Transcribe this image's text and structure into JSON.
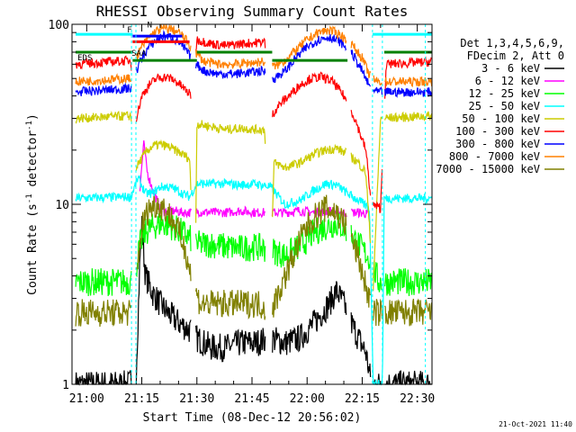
{
  "chart_data": {
    "type": "line",
    "title": "RHESSI Observing Summary Count Rates",
    "xlabel": "Start Time (08-Dec-12 20:56:02)",
    "ylabel_main": "Count Rate (s",
    "ylabel_sup": "-1",
    "ylabel_tail": " detector",
    "ylabel_close": ")",
    "yscale": "log",
    "ylim": [
      1,
      100
    ],
    "xlim_min": [
      56,
      154
    ],
    "x_ticks": [
      {
        "min": 60,
        "label": "21:00"
      },
      {
        "min": 75,
        "label": "21:15"
      },
      {
        "min": 90,
        "label": "21:30"
      },
      {
        "min": 105,
        "label": "21:45"
      },
      {
        "min": 120,
        "label": "22:00"
      },
      {
        "min": 135,
        "label": "22:15"
      },
      {
        "min": 150,
        "label": "22:30"
      }
    ],
    "y_ticks": [
      {
        "value": 1,
        "label": "1"
      },
      {
        "value": 10,
        "label": "10"
      },
      {
        "value": 100,
        "label": "100"
      }
    ],
    "legend_header": [
      "Det 1,3,4,5,6,9,",
      "FDecim 2, Att 0"
    ],
    "flag_labels": [
      {
        "text": "F",
        "min": 71.0,
        "value": 90
      },
      {
        "text": "N",
        "min": 76.5,
        "value": 96
      },
      {
        "text": "EDS",
        "min": 57.5,
        "value": 63
      },
      {
        "text": "SAA",
        "min": 72.2,
        "value": 67
      }
    ],
    "flag_lines": [
      {
        "color": "#00ffff",
        "value": 88,
        "segments": [
          [
            57.0,
            72.5
          ],
          [
            137.8,
            154.0
          ]
        ]
      },
      {
        "color": "#ff0000",
        "value": 80,
        "segments": [
          [
            72.5,
            88.0
          ]
        ]
      },
      {
        "color": "#0000ff",
        "value": 86,
        "segments": [
          [
            72.5,
            86.0
          ]
        ]
      },
      {
        "color": "#008000",
        "value": 70,
        "segments": [
          [
            57.0,
            72.5
          ],
          [
            90.0,
            110.5
          ],
          [
            141.0,
            154.0
          ]
        ]
      },
      {
        "color": "#008000",
        "value": 63,
        "segments": [
          [
            72.5,
            90.0
          ],
          [
            110.5,
            131.0
          ]
        ]
      }
    ],
    "gaps": [
      [
        72.2,
        73.4
      ],
      [
        88.5,
        89.6
      ],
      [
        108.7,
        110.5
      ],
      [
        130.8,
        132.0
      ],
      [
        137.3,
        138.0
      ],
      [
        140.5,
        141.1
      ]
    ],
    "series": [
      {
        "name": "3 - 6 keV",
        "color": "#000000",
        "points": [
          [
            57,
            1.0
          ],
          [
            71.5,
            1.0
          ],
          [
            73.5,
            1.2
          ],
          [
            74.5,
            5.0
          ],
          [
            75.0,
            7.5
          ],
          [
            76.0,
            4.0
          ],
          [
            78.0,
            3.2
          ],
          [
            80.0,
            2.8
          ],
          [
            82.0,
            2.5
          ],
          [
            85.0,
            2.2
          ],
          [
            88.0,
            2.0
          ],
          [
            90.0,
            1.8
          ],
          [
            94.0,
            1.6
          ],
          [
            98.0,
            1.6
          ],
          [
            102.0,
            1.7
          ],
          [
            106.0,
            1.7
          ],
          [
            110.0,
            1.8
          ],
          [
            114.0,
            1.7
          ],
          [
            118.0,
            1.8
          ],
          [
            122.0,
            2.2
          ],
          [
            126.0,
            2.8
          ],
          [
            128.0,
            3.3
          ],
          [
            130.0,
            2.8
          ],
          [
            132.0,
            2.2
          ],
          [
            134.0,
            1.8
          ],
          [
            136.0,
            1.5
          ],
          [
            137.5,
            1.0
          ],
          [
            154.0,
            1.0
          ]
        ]
      },
      {
        "name": "6 - 12 keV",
        "color": "#ff00ff",
        "points": [
          [
            74.5,
            12
          ],
          [
            75.5,
            22
          ],
          [
            76.5,
            15
          ],
          [
            78.0,
            12
          ],
          [
            80.0,
            9.5
          ],
          [
            82.0,
            9.0
          ],
          [
            84.0,
            9.2
          ],
          [
            86.0,
            9.0
          ],
          [
            88.0,
            9.0
          ],
          [
            90.0,
            9.1
          ],
          [
            94.0,
            9.0
          ],
          [
            98.0,
            9.0
          ],
          [
            102.0,
            9.2
          ],
          [
            106.0,
            9.0
          ],
          [
            110.0,
            9.0
          ],
          [
            114.0,
            9.0
          ],
          [
            118.0,
            9.2
          ],
          [
            122.0,
            9.0
          ],
          [
            126.0,
            9.2
          ],
          [
            130.0,
            9.0
          ],
          [
            134.0,
            9.0
          ],
          [
            137.0,
            8.8
          ]
        ]
      },
      {
        "name": "12 - 25 keV",
        "color": "#00ff00",
        "points": [
          [
            57,
            3.7
          ],
          [
            72.0,
            3.7
          ],
          [
            73.5,
            4.5
          ],
          [
            74.5,
            6.0
          ],
          [
            76.0,
            7.0
          ],
          [
            78.0,
            7.5
          ],
          [
            80.0,
            7.8
          ],
          [
            82.0,
            7.7
          ],
          [
            84.0,
            7.4
          ],
          [
            86.0,
            7.0
          ],
          [
            88.0,
            6.5
          ],
          [
            90.0,
            6.0
          ],
          [
            94.0,
            6.0
          ],
          [
            98.0,
            5.8
          ],
          [
            102.0,
            5.7
          ],
          [
            106.0,
            5.8
          ],
          [
            110.0,
            5.6
          ],
          [
            114.0,
            5.2
          ],
          [
            118.0,
            5.8
          ],
          [
            122.0,
            7.0
          ],
          [
            125.0,
            7.5
          ],
          [
            128.0,
            7.8
          ],
          [
            131.0,
            7.2
          ],
          [
            134.0,
            6.0
          ],
          [
            137.0,
            5.0
          ],
          [
            139.5,
            3.7
          ],
          [
            141.5,
            3.7
          ],
          [
            154.0,
            3.7
          ]
        ]
      },
      {
        "name": "25 - 50 keV",
        "color": "#00ffff",
        "points": [
          [
            57,
            10.8
          ],
          [
            72.0,
            11.0
          ],
          [
            74.0,
            14.0
          ],
          [
            76.0,
            11.5
          ],
          [
            78.0,
            11.5
          ],
          [
            80.0,
            12.5
          ],
          [
            82.0,
            12.5
          ],
          [
            84.0,
            12.2
          ],
          [
            86.0,
            11.5
          ],
          [
            88.0,
            11.0
          ],
          [
            90.0,
            13.0
          ],
          [
            94.0,
            13.0
          ],
          [
            98.0,
            13.0
          ],
          [
            102.0,
            12.8
          ],
          [
            106.0,
            13.0
          ],
          [
            110.0,
            12.5
          ],
          [
            114.0,
            10.0
          ],
          [
            118.0,
            10.5
          ],
          [
            122.0,
            12.0
          ],
          [
            125.0,
            13.0
          ],
          [
            128.0,
            12.8
          ],
          [
            131.0,
            11.5
          ],
          [
            134.0,
            10.5
          ],
          [
            137.0,
            9.5
          ],
          [
            138.0,
            1.0
          ],
          [
            140.5,
            1.0
          ],
          [
            141.0,
            10.8
          ],
          [
            154.0,
            10.8
          ]
        ]
      },
      {
        "name": "50 - 100 keV",
        "color": "#cccc00",
        "points": [
          [
            57,
            30
          ],
          [
            72.0,
            31
          ],
          [
            73.5,
            16
          ],
          [
            75.0,
            18
          ],
          [
            76.5,
            20
          ],
          [
            78.0,
            21
          ],
          [
            80.0,
            21.5
          ],
          [
            82.0,
            21
          ],
          [
            84.0,
            20
          ],
          [
            86.0,
            19
          ],
          [
            88.0,
            18
          ],
          [
            89.5,
            3.5
          ],
          [
            90.0,
            28
          ],
          [
            94.0,
            27
          ],
          [
            98.0,
            26
          ],
          [
            102.0,
            26.5
          ],
          [
            106.0,
            26
          ],
          [
            108.5,
            26
          ],
          [
            110.0,
            3.5
          ],
          [
            111.0,
            17
          ],
          [
            114.0,
            16
          ],
          [
            118.0,
            17
          ],
          [
            122.0,
            19
          ],
          [
            125.0,
            20
          ],
          [
            128.0,
            20.5
          ],
          [
            131.0,
            19
          ],
          [
            134.0,
            17
          ],
          [
            136.0,
            15
          ],
          [
            138.0,
            3.5
          ],
          [
            140.0,
            30
          ],
          [
            154.0,
            31
          ]
        ]
      },
      {
        "name": "100 - 300 keV",
        "color": "#ff0000",
        "points": [
          [
            57,
            60
          ],
          [
            72.0,
            63
          ],
          [
            73.5,
            30
          ],
          [
            75.0,
            40
          ],
          [
            77.0,
            46
          ],
          [
            79.0,
            50
          ],
          [
            81.0,
            51
          ],
          [
            83.0,
            50
          ],
          [
            85.0,
            47
          ],
          [
            87.0,
            43
          ],
          [
            88.5,
            40
          ],
          [
            90.0,
            82
          ],
          [
            94.0,
            78
          ],
          [
            98.0,
            76
          ],
          [
            102.0,
            78
          ],
          [
            106.0,
            79
          ],
          [
            108.5,
            80
          ],
          [
            110.0,
            30
          ],
          [
            112.0,
            35
          ],
          [
            115.0,
            40
          ],
          [
            118.0,
            46
          ],
          [
            121.0,
            50
          ],
          [
            124.0,
            51
          ],
          [
            127.0,
            48
          ],
          [
            130.0,
            40
          ],
          [
            133.0,
            30
          ],
          [
            136.0,
            20
          ],
          [
            137.5,
            10
          ],
          [
            140.0,
            9.5
          ],
          [
            141.5,
            60
          ],
          [
            154.0,
            62
          ]
        ]
      },
      {
        "name": "300 - 800 keV",
        "color": "#0000ff",
        "points": [
          [
            57,
            42
          ],
          [
            72.0,
            44
          ],
          [
            73.5,
            55
          ],
          [
            75.0,
            65
          ],
          [
            77.0,
            75
          ],
          [
            79.0,
            82
          ],
          [
            81.0,
            86
          ],
          [
            83.0,
            85
          ],
          [
            85.0,
            80
          ],
          [
            87.0,
            72
          ],
          [
            89.0,
            62
          ],
          [
            92.0,
            55
          ],
          [
            96.0,
            53
          ],
          [
            100.0,
            53
          ],
          [
            104.0,
            54
          ],
          [
            108.0,
            55
          ],
          [
            111.0,
            50
          ],
          [
            114.0,
            55
          ],
          [
            117.0,
            65
          ],
          [
            120.0,
            75
          ],
          [
            123.0,
            82
          ],
          [
            126.0,
            85
          ],
          [
            129.0,
            80
          ],
          [
            132.0,
            70
          ],
          [
            135.0,
            55
          ],
          [
            137.0,
            45
          ],
          [
            139.0,
            42
          ],
          [
            154.0,
            42
          ]
        ]
      },
      {
        "name": "800 - 7000 keV",
        "color": "#ff8000",
        "points": [
          [
            57,
            48
          ],
          [
            72.0,
            50
          ],
          [
            73.5,
            65
          ],
          [
            75.0,
            75
          ],
          [
            77.0,
            85
          ],
          [
            79.0,
            92
          ],
          [
            81.0,
            95
          ],
          [
            83.0,
            94
          ],
          [
            85.0,
            90
          ],
          [
            87.0,
            82
          ],
          [
            89.0,
            72
          ],
          [
            92.0,
            62
          ],
          [
            96.0,
            60
          ],
          [
            100.0,
            60
          ],
          [
            104.0,
            61
          ],
          [
            108.0,
            62
          ],
          [
            111.0,
            58
          ],
          [
            114.0,
            63
          ],
          [
            117.0,
            72
          ],
          [
            120.0,
            82
          ],
          [
            123.0,
            90
          ],
          [
            126.0,
            93
          ],
          [
            129.0,
            88
          ],
          [
            132.0,
            78
          ],
          [
            135.0,
            65
          ],
          [
            137.0,
            52
          ],
          [
            139.0,
            48
          ],
          [
            154.0,
            48
          ]
        ]
      },
      {
        "name": "7000 - 15000 keV",
        "color": "#808000",
        "points": [
          [
            57,
            2.5
          ],
          [
            72.0,
            2.5
          ],
          [
            73.5,
            4.0
          ],
          [
            75.0,
            7.5
          ],
          [
            77.0,
            9.5
          ],
          [
            79.0,
            10.0
          ],
          [
            81.0,
            9.5
          ],
          [
            83.0,
            8.5
          ],
          [
            85.0,
            7.0
          ],
          [
            87.0,
            5.5
          ],
          [
            89.0,
            3.5
          ],
          [
            91.0,
            2.8
          ],
          [
            95.0,
            2.8
          ],
          [
            99.0,
            2.8
          ],
          [
            103.0,
            2.8
          ],
          [
            107.0,
            2.8
          ],
          [
            110.0,
            2.5
          ],
          [
            113.0,
            3.5
          ],
          [
            116.0,
            5.0
          ],
          [
            119.0,
            7.0
          ],
          [
            122.0,
            8.5
          ],
          [
            125.0,
            9.5
          ],
          [
            128.0,
            9.0
          ],
          [
            131.0,
            7.5
          ],
          [
            134.0,
            5.0
          ],
          [
            136.0,
            3.5
          ],
          [
            138.0,
            2.5
          ],
          [
            154.0,
            2.5
          ]
        ]
      }
    ],
    "timestamp": "21-Oct-2021 11:40",
    "grid": false,
    "legend": "right"
  }
}
